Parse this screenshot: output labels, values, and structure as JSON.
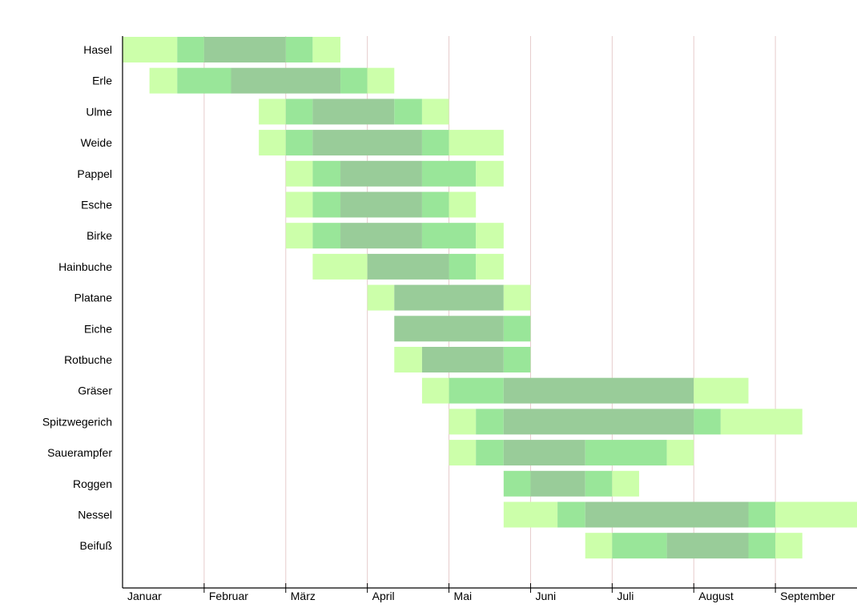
{
  "chart_data": {
    "type": "bar",
    "subtype": "gantt",
    "title": "",
    "xlabel": "",
    "ylabel": "",
    "months": [
      "Januar",
      "Februar",
      "März",
      "April",
      "Mai",
      "Juni",
      "Juli",
      "August",
      "September"
    ],
    "month_axis_range": [
      0,
      9
    ],
    "grid": true,
    "legend": "none",
    "colors": {
      "light": "#ccffaa",
      "medium": "#99e699",
      "strong": "#99cc99",
      "grid": "#e6cccc",
      "axis": "#000000"
    },
    "rows": [
      {
        "name": "Hasel",
        "segments": [
          {
            "start": 0.0,
            "end": 0.67,
            "level": "light"
          },
          {
            "start": 0.67,
            "end": 1.0,
            "level": "medium"
          },
          {
            "start": 1.0,
            "end": 2.0,
            "level": "strong"
          },
          {
            "start": 2.0,
            "end": 2.33,
            "level": "medium"
          },
          {
            "start": 2.33,
            "end": 2.67,
            "level": "light"
          }
        ]
      },
      {
        "name": "Erle",
        "segments": [
          {
            "start": 0.33,
            "end": 0.67,
            "level": "light"
          },
          {
            "start": 0.67,
            "end": 1.33,
            "level": "medium"
          },
          {
            "start": 1.33,
            "end": 2.67,
            "level": "strong"
          },
          {
            "start": 2.67,
            "end": 3.0,
            "level": "medium"
          },
          {
            "start": 3.0,
            "end": 3.33,
            "level": "light"
          }
        ]
      },
      {
        "name": "Ulme",
        "segments": [
          {
            "start": 1.67,
            "end": 2.0,
            "level": "light"
          },
          {
            "start": 2.0,
            "end": 2.33,
            "level": "medium"
          },
          {
            "start": 2.33,
            "end": 3.33,
            "level": "strong"
          },
          {
            "start": 3.33,
            "end": 3.67,
            "level": "medium"
          },
          {
            "start": 3.67,
            "end": 4.0,
            "level": "light"
          }
        ]
      },
      {
        "name": "Weide",
        "segments": [
          {
            "start": 1.67,
            "end": 2.0,
            "level": "light"
          },
          {
            "start": 2.0,
            "end": 2.33,
            "level": "medium"
          },
          {
            "start": 2.33,
            "end": 3.67,
            "level": "strong"
          },
          {
            "start": 3.67,
            "end": 4.0,
            "level": "medium"
          },
          {
            "start": 4.0,
            "end": 4.67,
            "level": "light"
          }
        ]
      },
      {
        "name": "Pappel",
        "segments": [
          {
            "start": 2.0,
            "end": 2.33,
            "level": "light"
          },
          {
            "start": 2.33,
            "end": 2.67,
            "level": "medium"
          },
          {
            "start": 2.67,
            "end": 3.67,
            "level": "strong"
          },
          {
            "start": 3.67,
            "end": 4.33,
            "level": "medium"
          },
          {
            "start": 4.33,
            "end": 4.67,
            "level": "light"
          }
        ]
      },
      {
        "name": "Esche",
        "segments": [
          {
            "start": 2.0,
            "end": 2.33,
            "level": "light"
          },
          {
            "start": 2.33,
            "end": 2.67,
            "level": "medium"
          },
          {
            "start": 2.67,
            "end": 3.67,
            "level": "strong"
          },
          {
            "start": 3.67,
            "end": 4.0,
            "level": "medium"
          },
          {
            "start": 4.0,
            "end": 4.33,
            "level": "light"
          }
        ]
      },
      {
        "name": "Birke",
        "segments": [
          {
            "start": 2.0,
            "end": 2.33,
            "level": "light"
          },
          {
            "start": 2.33,
            "end": 2.67,
            "level": "medium"
          },
          {
            "start": 2.67,
            "end": 3.67,
            "level": "strong"
          },
          {
            "start": 3.67,
            "end": 4.33,
            "level": "medium"
          },
          {
            "start": 4.33,
            "end": 4.67,
            "level": "light"
          }
        ]
      },
      {
        "name": "Hainbuche",
        "segments": [
          {
            "start": 2.33,
            "end": 3.0,
            "level": "light"
          },
          {
            "start": 3.0,
            "end": 4.0,
            "level": "strong"
          },
          {
            "start": 4.0,
            "end": 4.33,
            "level": "medium"
          },
          {
            "start": 4.33,
            "end": 4.67,
            "level": "light"
          }
        ]
      },
      {
        "name": "Platane",
        "segments": [
          {
            "start": 3.0,
            "end": 3.33,
            "level": "light"
          },
          {
            "start": 3.33,
            "end": 4.67,
            "level": "strong"
          },
          {
            "start": 4.67,
            "end": 5.0,
            "level": "light"
          }
        ]
      },
      {
        "name": "Eiche",
        "segments": [
          {
            "start": 3.33,
            "end": 4.67,
            "level": "strong"
          },
          {
            "start": 4.67,
            "end": 5.0,
            "level": "medium"
          }
        ]
      },
      {
        "name": "Rotbuche",
        "segments": [
          {
            "start": 3.33,
            "end": 3.67,
            "level": "light"
          },
          {
            "start": 3.67,
            "end": 4.67,
            "level": "strong"
          },
          {
            "start": 4.67,
            "end": 5.0,
            "level": "medium"
          }
        ]
      },
      {
        "name": "Gräser",
        "segments": [
          {
            "start": 3.67,
            "end": 4.0,
            "level": "light"
          },
          {
            "start": 4.0,
            "end": 4.67,
            "level": "medium"
          },
          {
            "start": 4.67,
            "end": 7.0,
            "level": "strong"
          },
          {
            "start": 7.0,
            "end": 7.67,
            "level": "light"
          }
        ]
      },
      {
        "name": "Spitzwegerich",
        "segments": [
          {
            "start": 4.0,
            "end": 4.33,
            "level": "light"
          },
          {
            "start": 4.33,
            "end": 4.67,
            "level": "medium"
          },
          {
            "start": 4.67,
            "end": 7.0,
            "level": "strong"
          },
          {
            "start": 7.0,
            "end": 7.33,
            "level": "medium"
          },
          {
            "start": 7.33,
            "end": 8.33,
            "level": "light"
          }
        ]
      },
      {
        "name": "Sauerampfer",
        "segments": [
          {
            "start": 4.0,
            "end": 4.33,
            "level": "light"
          },
          {
            "start": 4.33,
            "end": 4.67,
            "level": "medium"
          },
          {
            "start": 4.67,
            "end": 5.67,
            "level": "strong"
          },
          {
            "start": 5.67,
            "end": 6.67,
            "level": "medium"
          },
          {
            "start": 6.67,
            "end": 7.0,
            "level": "light"
          }
        ]
      },
      {
        "name": "Roggen",
        "segments": [
          {
            "start": 4.67,
            "end": 5.0,
            "level": "medium"
          },
          {
            "start": 5.0,
            "end": 5.67,
            "level": "strong"
          },
          {
            "start": 5.67,
            "end": 6.0,
            "level": "medium"
          },
          {
            "start": 6.0,
            "end": 6.33,
            "level": "light"
          }
        ]
      },
      {
        "name": "Nessel",
        "segments": [
          {
            "start": 4.67,
            "end": 5.33,
            "level": "light"
          },
          {
            "start": 5.33,
            "end": 5.67,
            "level": "medium"
          },
          {
            "start": 5.67,
            "end": 7.67,
            "level": "strong"
          },
          {
            "start": 7.67,
            "end": 8.0,
            "level": "medium"
          },
          {
            "start": 8.0,
            "end": 9.0,
            "level": "light"
          }
        ]
      },
      {
        "name": "Beifuß",
        "segments": [
          {
            "start": 5.67,
            "end": 6.0,
            "level": "light"
          },
          {
            "start": 6.0,
            "end": 6.67,
            "level": "medium"
          },
          {
            "start": 6.67,
            "end": 7.67,
            "level": "strong"
          },
          {
            "start": 7.67,
            "end": 8.0,
            "level": "medium"
          },
          {
            "start": 8.0,
            "end": 8.33,
            "level": "light"
          }
        ]
      }
    ]
  }
}
